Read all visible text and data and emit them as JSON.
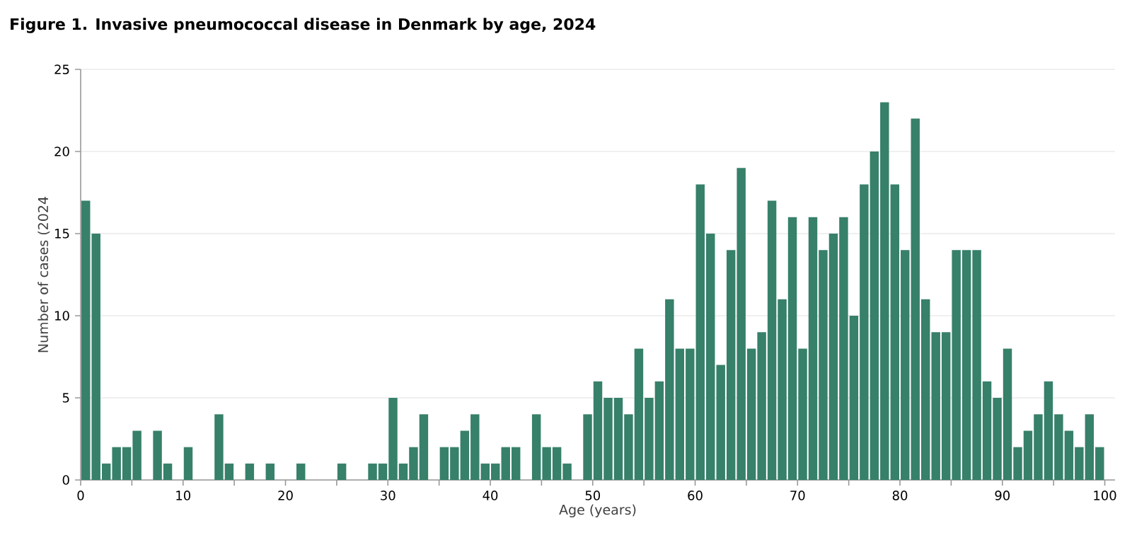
{
  "chart_data": {
    "type": "histogram",
    "title": "Figure 1. Invasive pneumococcal disease in Denmark by age, 2024",
    "xlabel": "Age (years)",
    "ylabel": "Number of cases (2024",
    "bins": [
      0,
      1,
      2,
      3,
      4,
      5,
      6,
      7,
      8,
      9,
      10,
      11,
      12,
      13,
      14,
      15,
      16,
      17,
      18,
      19,
      20,
      21,
      22,
      23,
      24,
      25,
      26,
      27,
      28,
      29,
      30,
      31,
      32,
      33,
      34,
      35,
      36,
      37,
      38,
      39,
      40,
      41,
      42,
      43,
      44,
      45,
      46,
      47,
      48,
      49,
      50,
      51,
      52,
      53,
      54,
      55,
      56,
      57,
      58,
      59,
      60,
      61,
      62,
      63,
      64,
      65,
      66,
      67,
      68,
      69,
      70,
      71,
      72,
      73,
      74,
      75,
      76,
      77,
      78,
      79,
      80,
      81,
      82,
      83,
      84,
      85,
      86,
      87,
      88,
      89,
      90,
      91,
      92,
      93,
      94,
      95,
      96,
      97,
      98,
      99,
      100
    ],
    "values": [
      17,
      15,
      1,
      2,
      2,
      3,
      0,
      3,
      1,
      0,
      2,
      0,
      0,
      4,
      1,
      0,
      1,
      0,
      1,
      0,
      0,
      1,
      0,
      0,
      0,
      1,
      0,
      0,
      1,
      1,
      5,
      1,
      2,
      4,
      0,
      2,
      2,
      3,
      4,
      1,
      1,
      2,
      2,
      0,
      4,
      2,
      2,
      1,
      0,
      4,
      6,
      5,
      5,
      4,
      8,
      5,
      6,
      11,
      8,
      8,
      18,
      15,
      7,
      14,
      19,
      8,
      9,
      17,
      11,
      16,
      8,
      16,
      14,
      15,
      16,
      10,
      18,
      20,
      23,
      18,
      14,
      22,
      11,
      9,
      9,
      14,
      14,
      14,
      6,
      5,
      8,
      2,
      3,
      4,
      6,
      4,
      3,
      2,
      4,
      2
    ],
    "color": "#37806a",
    "xlim": [
      0,
      101
    ],
    "xticks": [
      0,
      {
        "value": 5,
        "label": null
      },
      10,
      {
        "value": 15,
        "label": null
      },
      20,
      {
        "value": 25,
        "label": null
      },
      30,
      {
        "value": 35,
        "label": null
      },
      40,
      {
        "value": 45,
        "label": null
      },
      50,
      {
        "value": 55,
        "label": null
      },
      60,
      {
        "value": 65,
        "label": null
      },
      70,
      {
        "value": 75,
        "label": null
      },
      80,
      {
        "value": 85,
        "label": null
      },
      90,
      {
        "value": 95,
        "label": null
      },
      100
    ],
    "ylim": [
      0,
      25
    ],
    "yticks": [
      0,
      5,
      10,
      15,
      20,
      25
    ],
    "grid": "y"
  }
}
